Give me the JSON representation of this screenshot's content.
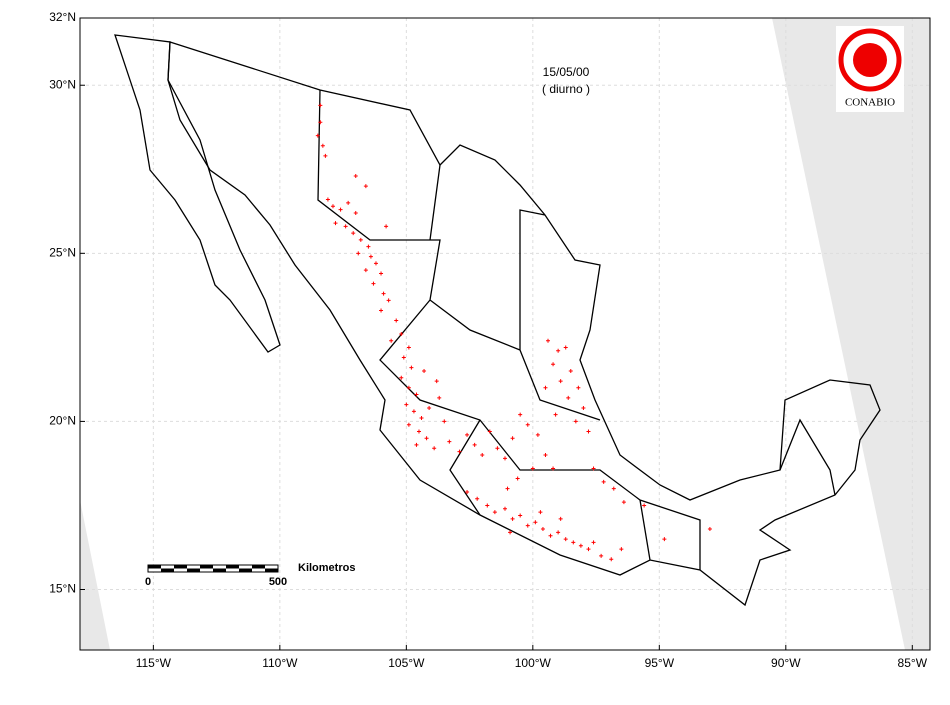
{
  "chart_data": {
    "type": "scatter",
    "date": "15/05/00",
    "period": "( diurno )",
    "logo": "CONABIO",
    "scale_bar": {
      "start": "0",
      "end": "500",
      "unit": "Kilometros"
    },
    "color": "#ff0000",
    "grid": true,
    "xlim": [
      -117.9,
      -84.3
    ],
    "ylim": [
      13.2,
      32
    ],
    "xticks": [
      {
        "value": -115,
        "label": "115°W"
      },
      {
        "value": -110,
        "label": "110°W"
      },
      {
        "value": -105,
        "label": "105°W"
      },
      {
        "value": -100,
        "label": "100°W"
      },
      {
        "value": -95,
        "label": "95°W"
      },
      {
        "value": -90,
        "label": "90°W"
      },
      {
        "value": -85,
        "label": "85°W"
      }
    ],
    "yticks": [
      {
        "value": 15,
        "label": "15°N"
      },
      {
        "value": 20,
        "label": "20°N"
      },
      {
        "value": 25,
        "label": "25°N"
      },
      {
        "value": 30,
        "label": "30°N"
      },
      {
        "value": 32,
        "label": "32°N"
      }
    ],
    "x": [
      -108.4,
      -108.4,
      -108.5,
      -108.3,
      -108.2,
      -108.1,
      -107.9,
      -107.6,
      -107.3,
      -107.0,
      -107.8,
      -107.4,
      -107.1,
      -106.8,
      -106.5,
      -106.9,
      -106.4,
      -106.2,
      -106.6,
      -106.0,
      -106.3,
      -105.9,
      -105.7,
      -106.0,
      -105.4,
      -105.2,
      -105.6,
      -104.9,
      -105.1,
      -104.8,
      -107.0,
      -106.6,
      -105.8,
      -105.2,
      -104.9,
      -104.6,
      -105.0,
      -104.7,
      -104.4,
      -104.9,
      -104.5,
      -104.2,
      -104.6,
      -103.9,
      -104.1,
      -103.7,
      -103.5,
      -103.3,
      -102.9,
      -102.6,
      -102.3,
      -102.0,
      -101.7,
      -101.4,
      -101.1,
      -100.8,
      -103.8,
      -104.3,
      -99.4,
      -99.0,
      -98.7,
      -99.2,
      -98.5,
      -98.9,
      -98.2,
      -99.5,
      -98.6,
      -98.0,
      -99.1,
      -98.3,
      -97.8,
      -100.5,
      -100.2,
      -99.8,
      -99.5,
      -99.2,
      -100.0,
      -100.6,
      -101.0,
      -97.6,
      -97.2,
      -96.8,
      -96.4,
      -102.6,
      -102.2,
      -101.8,
      -101.5,
      -101.1,
      -100.8,
      -100.5,
      -100.2,
      -99.9,
      -99.6,
      -99.3,
      -99.0,
      -98.7,
      -98.4,
      -98.1,
      -97.8,
      -97.6,
      -100.9,
      -99.7,
      -98.9,
      -97.3,
      -96.9,
      -96.5,
      -95.6,
      -94.8,
      -93.0
    ],
    "y": [
      29.4,
      28.9,
      28.5,
      28.2,
      27.9,
      26.6,
      26.4,
      26.3,
      26.5,
      26.2,
      25.9,
      25.8,
      25.6,
      25.4,
      25.2,
      25.0,
      24.9,
      24.7,
      24.5,
      24.4,
      24.1,
      23.8,
      23.6,
      23.3,
      23.0,
      22.6,
      22.4,
      22.2,
      21.9,
      21.6,
      27.3,
      27.0,
      25.8,
      21.3,
      21.0,
      20.8,
      20.5,
      20.3,
      20.1,
      19.9,
      19.7,
      19.5,
      19.3,
      19.2,
      20.4,
      20.7,
      20.0,
      19.4,
      19.1,
      19.6,
      19.3,
      19.0,
      19.7,
      19.2,
      18.9,
      19.5,
      21.2,
      21.5,
      22.4,
      22.1,
      22.2,
      21.7,
      21.5,
      21.2,
      21.0,
      21.0,
      20.7,
      20.4,
      20.2,
      20.0,
      19.7,
      20.2,
      19.9,
      19.6,
      19.0,
      18.6,
      18.6,
      18.3,
      18.0,
      18.6,
      18.2,
      18.0,
      17.6,
      17.9,
      17.7,
      17.5,
      17.3,
      17.4,
      17.1,
      17.2,
      16.9,
      17.0,
      16.8,
      16.6,
      16.7,
      16.5,
      16.4,
      16.3,
      16.2,
      16.4,
      16.7,
      17.3,
      17.1,
      16.0,
      15.9,
      16.2,
      17.5,
      16.5,
      16.8
    ]
  }
}
